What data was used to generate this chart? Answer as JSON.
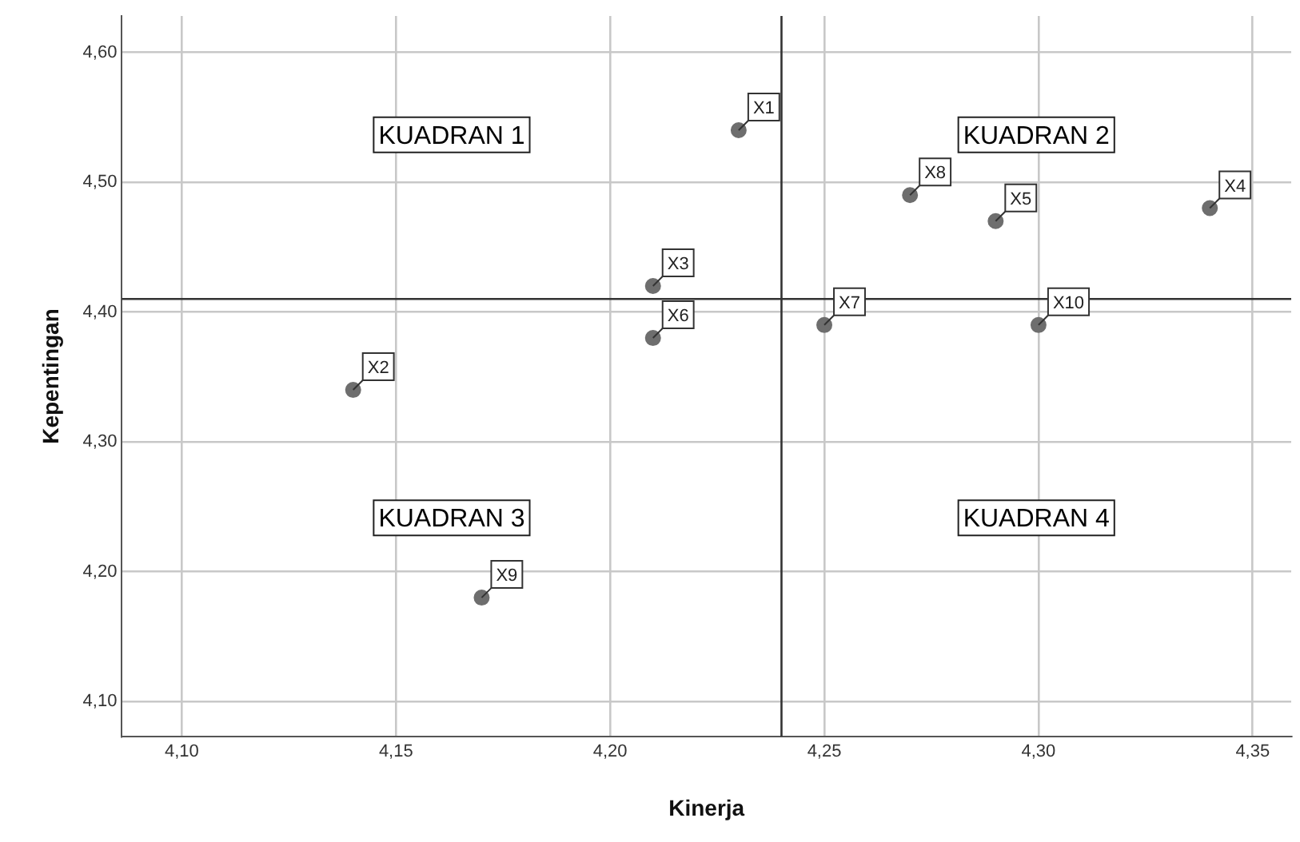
{
  "chart_data": {
    "type": "scatter",
    "xlabel": "Kinerja",
    "ylabel": "Kepentingan",
    "x": [
      4.23,
      4.14,
      4.21,
      4.34,
      4.29,
      4.21,
      4.25,
      4.27,
      4.17,
      4.3
    ],
    "series": [
      {
        "color": "#6e6e6e",
        "values": [
          4.54,
          4.34,
          4.42,
          4.48,
          4.47,
          4.38,
          4.39,
          4.49,
          4.18,
          4.39
        ],
        "value_labels": [
          "X1",
          "X2",
          "X3",
          "X4",
          "X5",
          "X6",
          "X7",
          "X8",
          "X9",
          "X10"
        ]
      }
    ],
    "xlim": [
      4.086,
      4.359
    ],
    "ylim": [
      4.073,
      4.628
    ],
    "xticks": [
      {
        "value": 4.1,
        "label": "4,10"
      },
      {
        "value": 4.15,
        "label": "4,15"
      },
      {
        "value": 4.2,
        "label": "4,20"
      },
      {
        "value": 4.25,
        "label": "4,25"
      },
      {
        "value": 4.3,
        "label": "4,30"
      },
      {
        "value": 4.35,
        "label": "4,35"
      }
    ],
    "yticks": [
      {
        "value": 4.1,
        "label": "4,10"
      },
      {
        "value": 4.2,
        "label": "4,20"
      },
      {
        "value": 4.3,
        "label": "4,30"
      },
      {
        "value": 4.4,
        "label": "4,40"
      },
      {
        "value": 4.5,
        "label": "4,50"
      },
      {
        "value": 4.6,
        "label": "4,60"
      }
    ],
    "ref_lines": [
      {
        "axis": "x",
        "value": 4.24,
        "color": "#333333"
      },
      {
        "axis": "y",
        "value": 4.41,
        "color": "#333333"
      }
    ],
    "annotations": [
      "KUADRAN 1",
      "KUADRAN 2",
      "KUADRAN 3",
      "KUADRAN 4"
    ],
    "grid": true,
    "legend": false,
    "marker": "circle"
  }
}
